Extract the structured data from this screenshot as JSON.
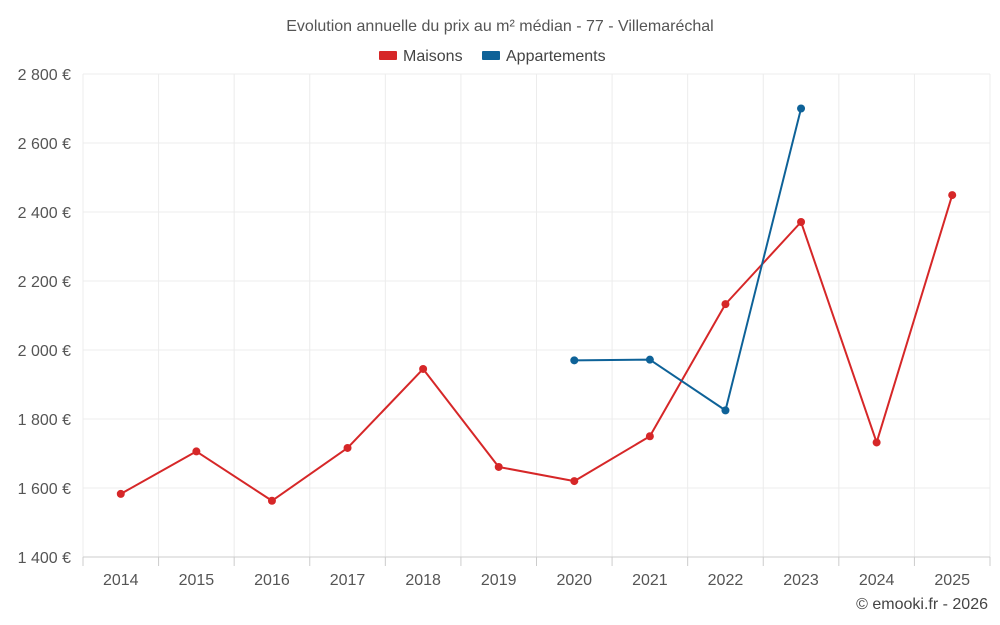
{
  "chart_data": {
    "type": "line",
    "title": "Evolution annuelle du prix au m² médian - 77 - Villemaréchal",
    "categories": [
      "2014",
      "2015",
      "2016",
      "2017",
      "2018",
      "2019",
      "2020",
      "2021",
      "2022",
      "2023",
      "2024",
      "2025"
    ],
    "ylim": [
      1400,
      2800
    ],
    "yticks": [
      1400,
      1600,
      1800,
      2000,
      2200,
      2400,
      2600,
      2800
    ],
    "ytick_labels": [
      "1 400 €",
      "1 600 €",
      "1 800 €",
      "2 000 €",
      "2 200 €",
      "2 400 €",
      "2 600 €",
      "2 800 €"
    ],
    "grid": true,
    "legend_position": "top-center",
    "series": [
      {
        "name": "Maisons",
        "color": "#d62728",
        "values": [
          1583,
          1706,
          1563,
          1716,
          1945,
          1661,
          1620,
          1750,
          2133,
          2371,
          1732,
          2449
        ]
      },
      {
        "name": "Appartements",
        "color": "#0e6298",
        "values": [
          null,
          null,
          null,
          null,
          null,
          null,
          1970,
          1972,
          1825,
          2700,
          null,
          null
        ]
      }
    ],
    "credit": "© emooki.fr - 2026"
  }
}
